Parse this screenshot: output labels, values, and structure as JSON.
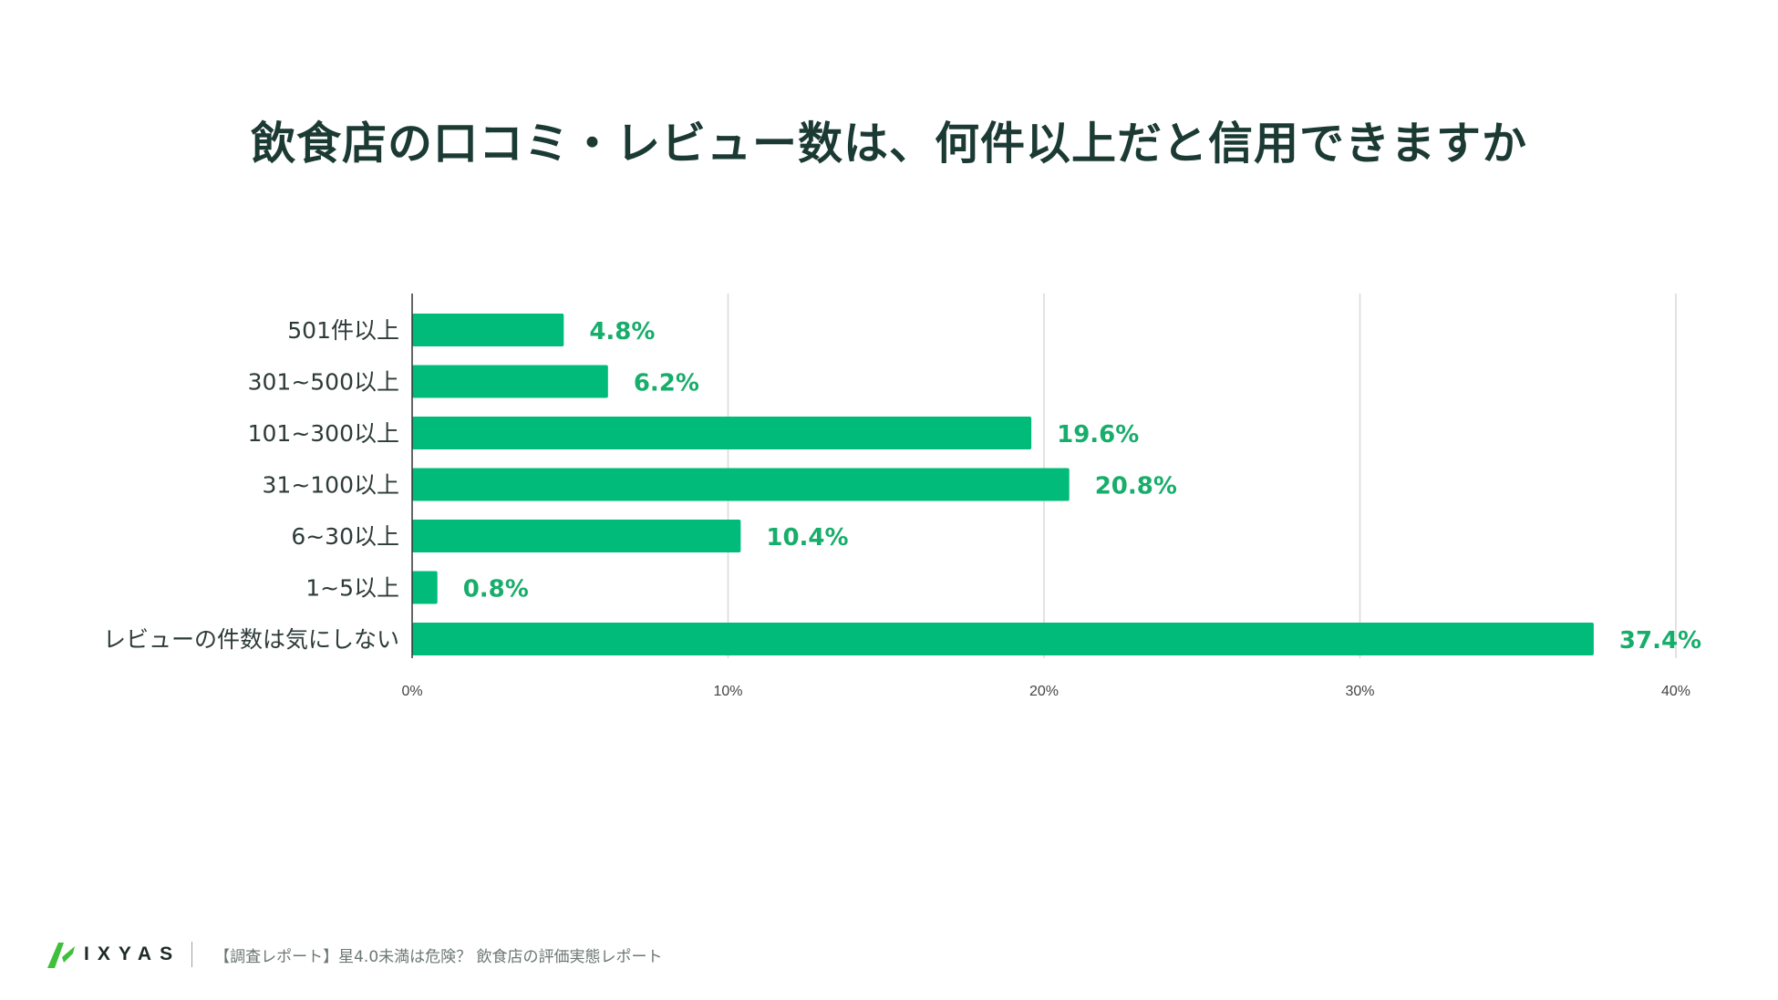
{
  "title": "飲食店の口コミ・レビュー数は、何件以上だと信用できますか",
  "chart_data": {
    "type": "bar",
    "orientation": "horizontal",
    "categories": [
      "501件以上",
      "301~500以上",
      "101~300以上",
      "31~100以上",
      "6~30以上",
      "1~5以上",
      "レビューの件数は気にしない"
    ],
    "values": [
      4.8,
      6.2,
      19.6,
      20.8,
      10.4,
      0.8,
      37.4
    ],
    "value_labels": [
      "4.8%",
      "6.2%",
      "19.6%",
      "20.8%",
      "10.4%",
      "0.8%",
      "37.4%"
    ],
    "xlim": [
      0,
      40
    ],
    "xticks": [
      0,
      10,
      20,
      30,
      40
    ],
    "xtick_labels": [
      "0%",
      "10%",
      "20%",
      "30%",
      "40%"
    ],
    "grid": true,
    "bar_color": "#00bb7a",
    "label_color": "#17ad6b"
  },
  "footer": {
    "logo_text": "IXYAS",
    "logo_color": "#3fbf3a",
    "caption": "【調査レポート】星4.0未満は危険？ 飲食店の評価実態レポート"
  }
}
